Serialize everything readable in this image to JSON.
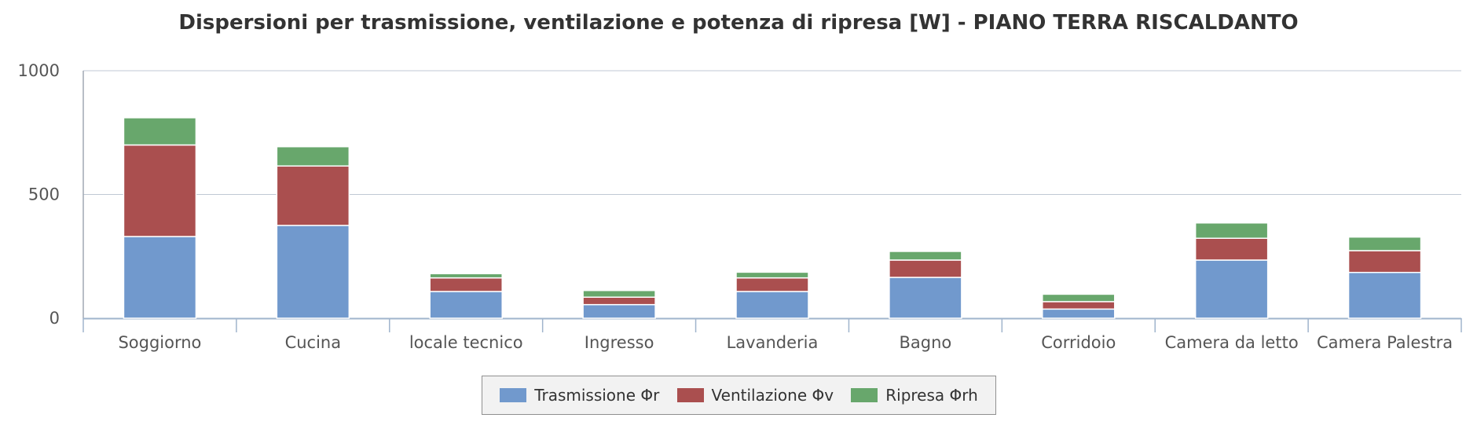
{
  "chart_data": {
    "type": "bar",
    "stacked": true,
    "title": "Dispersioni per trasmissione, ventilazione e potenza di ripresa [W] - PIANO TERRA RISCALDANTO",
    "xlabel": "",
    "ylabel": "",
    "ylim": [
      0,
      1000
    ],
    "yticks": [
      0,
      500,
      1000
    ],
    "grid": true,
    "legend_position": "bottom-center",
    "categories": [
      "Soggiorno",
      "Cucina",
      "locale tecnico",
      "Ingresso",
      "Lavanderia",
      "Bagno",
      "Corridoio",
      "Camera da letto",
      "Camera Palestra"
    ],
    "series": [
      {
        "name": "Trasmissione Φr",
        "color": "#7199cd",
        "values": [
          330,
          375,
          108,
          55,
          108,
          165,
          37,
          235,
          185
        ]
      },
      {
        "name": "Ventilazione Φv",
        "color": "#aa4f4f",
        "values": [
          370,
          240,
          55,
          30,
          55,
          70,
          30,
          88,
          88
        ]
      },
      {
        "name": "Ripresa Φrh",
        "color": "#68a76c",
        "values": [
          110,
          78,
          17,
          27,
          23,
          35,
          30,
          62,
          55
        ]
      }
    ]
  }
}
